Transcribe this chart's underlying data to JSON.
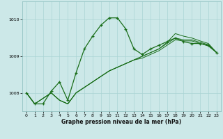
{
  "xlabel": "Graphe pression niveau de la mer (hPa)",
  "background_color": "#cce8e8",
  "grid_color": "#aad4d4",
  "line_color": "#1a6e1a",
  "ylim": [
    1007.5,
    1010.5
  ],
  "xlim": [
    -0.5,
    23.5
  ],
  "yticks": [
    1008,
    1009,
    1010
  ],
  "xticks": [
    0,
    1,
    2,
    3,
    4,
    5,
    6,
    7,
    8,
    9,
    10,
    11,
    12,
    13,
    14,
    15,
    16,
    17,
    18,
    19,
    20,
    21,
    22,
    23
  ],
  "series1": [
    1008.0,
    1007.7,
    1007.7,
    1008.05,
    1008.3,
    1007.8,
    1008.55,
    1009.2,
    1009.55,
    1009.85,
    1010.05,
    1010.05,
    1009.75,
    1009.2,
    1009.05,
    1009.2,
    1009.3,
    1009.4,
    1009.5,
    1009.4,
    1009.35,
    1009.35,
    1009.3,
    1009.1
  ],
  "series2": [
    1008.0,
    1007.7,
    1007.85,
    1008.0,
    1007.8,
    1007.7,
    1008.0,
    1008.15,
    1008.3,
    1008.45,
    1008.6,
    1008.7,
    1008.8,
    1008.9,
    1009.0,
    1009.1,
    1009.2,
    1009.35,
    1009.5,
    1009.45,
    1009.45,
    1009.38,
    1009.32,
    1009.1
  ],
  "series3": [
    1008.0,
    1007.7,
    1007.85,
    1008.0,
    1007.8,
    1007.7,
    1008.0,
    1008.15,
    1008.3,
    1008.45,
    1008.6,
    1008.7,
    1008.8,
    1008.9,
    1009.0,
    1009.1,
    1009.2,
    1009.38,
    1009.62,
    1009.55,
    1009.5,
    1009.42,
    1009.35,
    1009.1
  ],
  "series4": [
    1008.0,
    1007.7,
    1007.85,
    1008.0,
    1007.8,
    1007.7,
    1008.0,
    1008.15,
    1008.3,
    1008.45,
    1008.6,
    1008.7,
    1008.8,
    1008.9,
    1008.95,
    1009.05,
    1009.15,
    1009.3,
    1009.45,
    1009.42,
    1009.42,
    1009.35,
    1009.28,
    1009.1
  ]
}
